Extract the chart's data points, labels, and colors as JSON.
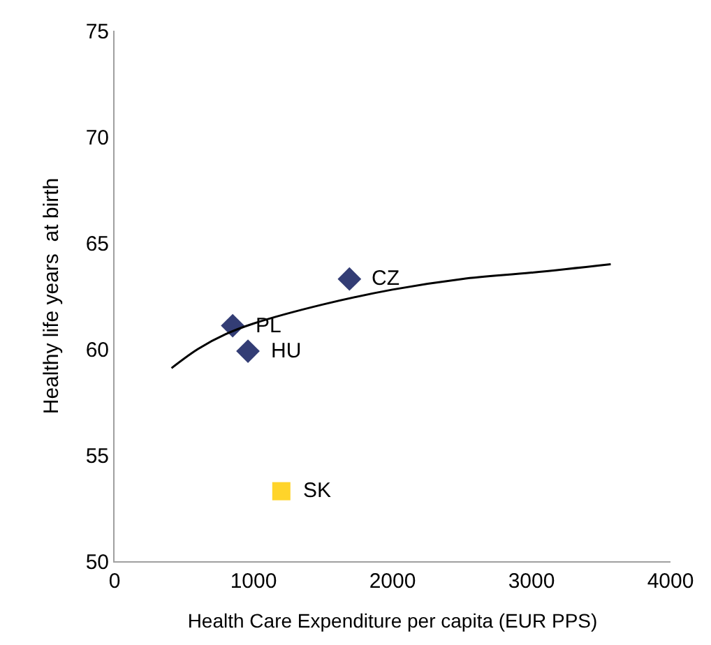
{
  "chart_data": {
    "type": "scatter",
    "xlabel": "Health Care Expenditure per capita (EUR PPS)",
    "ylabel": "Healthy life years  at birth",
    "xlim": [
      0,
      4000
    ],
    "xticks": [
      0,
      1000,
      2000,
      3000,
      4000
    ],
    "ylim": [
      50,
      75
    ],
    "yticks": [
      50,
      55,
      60,
      65,
      70,
      75
    ],
    "grid": false,
    "legend": false,
    "series": [
      {
        "marker": "diamond",
        "color": "#333d75",
        "x": [
          850,
          960,
          1690
        ],
        "values": [
          61.1,
          59.9,
          63.3
        ]
      },
      {
        "marker": "square",
        "color": "#ffd42a",
        "x": [
          1200
        ],
        "values": [
          53.3
        ]
      },
      {
        "type": "line",
        "color": "#000000",
        "line_style": "solid",
        "x": [
          410,
          600,
          800,
          1000,
          1500,
          2000,
          2500,
          3000,
          3570
        ],
        "values": [
          59.1,
          60.0,
          60.7,
          61.2,
          62.1,
          62.8,
          63.3,
          63.6,
          64.0
        ]
      }
    ],
    "annotations": [
      {
        "text": "PL",
        "x": 850,
        "y": 61.1
      },
      {
        "text": "HU",
        "x": 960,
        "y": 59.9
      },
      {
        "text": "CZ",
        "x": 1690,
        "y": 63.3
      },
      {
        "text": "SK",
        "x": 1200,
        "y": 53.3
      }
    ]
  }
}
